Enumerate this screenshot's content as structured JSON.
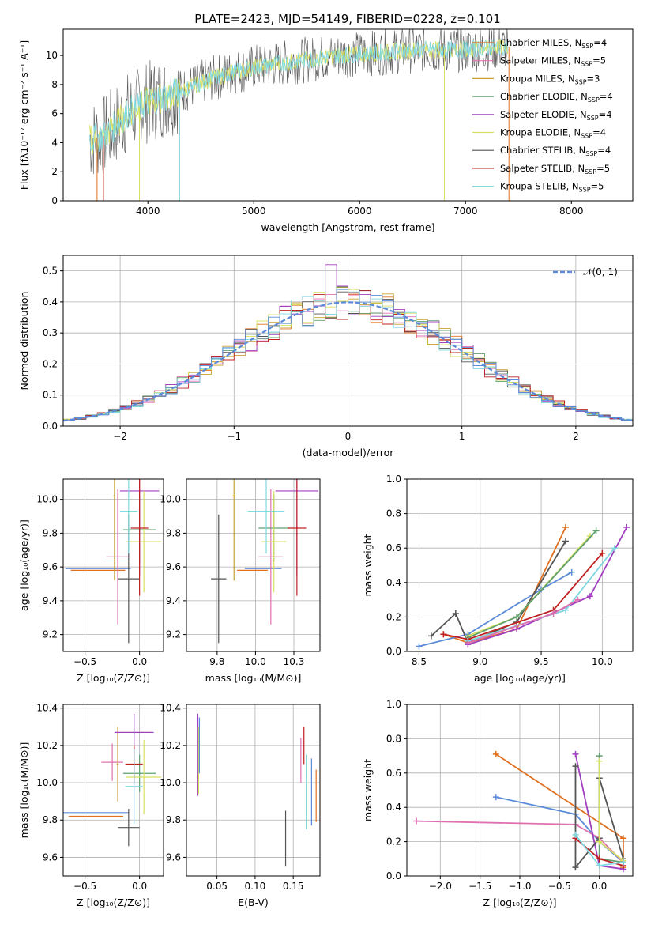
{
  "figure": {
    "title": "PLATE=2423, MJD=54149, FIBERID=0228, z=0.101"
  },
  "colors": {
    "cm": "#e07020",
    "sm": "#e070b0",
    "km": "#c8a030",
    "ce": "#60a070",
    "se": "#a040c0",
    "ke": "#d8e060",
    "cs": "#555555",
    "ss": "#c02020",
    "ks": "#80d8e0",
    "norm": "#5b8bd8",
    "grid": "#b0b0b0"
  },
  "chart_data": [
    {
      "id": "spectrum",
      "type": "line",
      "xlabel": "wavelength [Angstrom, rest frame]",
      "ylabel": "Flux [fλ10⁻¹⁷ erg cm⁻² s⁻¹ A⁻¹]",
      "xlim": [
        3200,
        8580
      ],
      "ylim": [
        0,
        11.8
      ],
      "xticks": [
        4000,
        5000,
        6000,
        7000,
        8000
      ],
      "yticks": [
        0,
        2,
        4,
        6,
        8,
        10
      ],
      "grid": false,
      "legend_position": "top-right",
      "legend": [
        {
          "label": "Chabrier MILES, N",
          "sub": "SSP",
          "val": "=4",
          "color": "cm"
        },
        {
          "label": "Salpeter MILES, N",
          "sub": "SSP",
          "val": "=5",
          "color": "sm"
        },
        {
          "label": "Kroupa MILES, N",
          "sub": "SSP",
          "val": "=3",
          "color": "km"
        },
        {
          "label": "Chabrier ELODIE, N",
          "sub": "SSP",
          "val": "=4",
          "color": "ce"
        },
        {
          "label": "Salpeter ELODIE, N",
          "sub": "SSP",
          "val": "=4",
          "color": "se"
        },
        {
          "label": "Kroupa ELODIE, N",
          "sub": "SSP",
          "val": "=4",
          "color": "ke"
        },
        {
          "label": "Chabrier STELIB, N",
          "sub": "SSP",
          "val": "=4",
          "color": "cs"
        },
        {
          "label": "Salpeter STELIB, N",
          "sub": "SSP",
          "val": "=5",
          "color": "ss"
        },
        {
          "label": "Kroupa STELIB, N",
          "sub": "SSP",
          "val": "=5",
          "color": "ks"
        }
      ],
      "continuum": [
        [
          3450,
          4.2
        ],
        [
          3600,
          4.5
        ],
        [
          3800,
          6.0
        ],
        [
          4000,
          6.8
        ],
        [
          4300,
          7.5
        ],
        [
          4600,
          8.4
        ],
        [
          5000,
          9.2
        ],
        [
          5400,
          9.6
        ],
        [
          5800,
          10.0
        ],
        [
          6200,
          10.2
        ],
        [
          6600,
          10.4
        ],
        [
          7000,
          10.4
        ],
        [
          7400,
          10.6
        ]
      ]
    },
    {
      "id": "residuals",
      "type": "line",
      "xlabel": "(data-model)/error",
      "ylabel": "Normed distribution",
      "xlim": [
        -2.5,
        2.5
      ],
      "ylim": [
        0,
        0.55
      ],
      "xticks": [
        -2,
        -1,
        0,
        1,
        2
      ],
      "yticks": [
        0.0,
        0.1,
        0.2,
        0.3,
        0.4,
        0.5
      ],
      "grid": true,
      "legend_position": "top-right",
      "legend_label": "𝒩(0, 1)",
      "bins": [
        -2.5,
        -2.4,
        -2.3,
        -2.2,
        -2.1,
        -2.0,
        -1.9,
        -1.8,
        -1.7,
        -1.6,
        -1.5,
        -1.4,
        -1.3,
        -1.2,
        -1.1,
        -1.0,
        -0.9,
        -0.8,
        -0.7,
        -0.6,
        -0.5,
        -0.4,
        -0.3,
        -0.2,
        -0.1,
        0.0,
        0.1,
        0.2,
        0.3,
        0.4,
        0.5,
        0.6,
        0.7,
        0.8,
        0.9,
        1.0,
        1.1,
        1.2,
        1.3,
        1.4,
        1.5,
        1.6,
        1.7,
        1.8,
        1.9,
        2.0,
        2.1,
        2.2,
        2.3,
        2.4,
        2.5
      ],
      "peak_bin": -0.2,
      "peak_value": 0.52
    },
    {
      "id": "age-vs-Z",
      "type": "scatter",
      "xlabel": "Z [log₁₀(Z/Z⊙)]",
      "ylabel": "age  [log₁₀(age/yr)]",
      "xlim": [
        -0.7,
        0.22
      ],
      "ylim": [
        9.1,
        10.12
      ],
      "xticks": [
        -0.5,
        0.0
      ],
      "yticks": [
        9.2,
        9.4,
        9.6,
        9.8,
        10.0
      ],
      "grid": true,
      "points": [
        {
          "c": "norm",
          "x": -0.38,
          "y": 9.59,
          "xe": 0.3,
          "ye": 0.0
        },
        {
          "c": "cm",
          "x": -0.38,
          "y": 9.58,
          "xe": 0.25,
          "ye": 0.0
        },
        {
          "c": "sm",
          "x": -0.2,
          "y": 9.66,
          "xe": 0.1,
          "ye": 0.4
        },
        {
          "c": "km",
          "x": -0.23,
          "y": 10.02,
          "xe": 0.01,
          "ye": 0.5
        },
        {
          "c": "ce",
          "x": 0.0,
          "y": 9.82,
          "xe": 0.15,
          "ye": 0.2
        },
        {
          "c": "se",
          "x": 0.0,
          "y": 10.05,
          "xe": 0.18,
          "ye": 0.5
        },
        {
          "c": "ke",
          "x": 0.04,
          "y": 9.75,
          "xe": 0.16,
          "ye": 0.3
        },
        {
          "c": "cs",
          "x": -0.1,
          "y": 9.53,
          "xe": 0.1,
          "ye": 0.38
        },
        {
          "c": "ss",
          "x": 0.0,
          "y": 9.83,
          "xe": 0.08,
          "ye": 0.4
        },
        {
          "c": "ks",
          "x": -0.1,
          "y": 9.93,
          "xe": 0.08,
          "ye": 0.25
        }
      ]
    },
    {
      "id": "age-vs-mass",
      "type": "scatter",
      "xlabel": "mass [log₁₀(M/M⊙)]",
      "ylabel": "",
      "xlim": [
        9.55,
        10.42
      ],
      "ylim": [
        9.1,
        10.12
      ],
      "xticks": [
        9.75,
        10.0,
        10.25
      ],
      "yticks": [
        9.2,
        9.4,
        9.6,
        9.8,
        10.0
      ],
      "grid": true,
      "points": [
        {
          "c": "norm",
          "x": 10.05,
          "y": 9.59,
          "xe": 0.12,
          "ye": 0.0
        },
        {
          "c": "cm",
          "x": 9.98,
          "y": 9.58,
          "xe": 0.1,
          "ye": 0.0
        },
        {
          "c": "sm",
          "x": 10.1,
          "y": 9.66,
          "xe": 0.08,
          "ye": 0.4
        },
        {
          "c": "km",
          "x": 9.86,
          "y": 10.02,
          "xe": 0.01,
          "ye": 0.5
        },
        {
          "c": "ce",
          "x": 10.12,
          "y": 9.83,
          "xe": 0.1,
          "ye": 0.2
        },
        {
          "c": "se",
          "x": 10.27,
          "y": 10.05,
          "xe": 0.14,
          "ye": 0.5
        },
        {
          "c": "ke",
          "x": 10.12,
          "y": 9.75,
          "xe": 0.08,
          "ye": 0.3
        },
        {
          "c": "cs",
          "x": 9.76,
          "y": 9.53,
          "xe": 0.05,
          "ye": 0.38
        },
        {
          "c": "ss",
          "x": 10.27,
          "y": 9.83,
          "xe": 0.06,
          "ye": 0.4
        },
        {
          "c": "ks",
          "x": 10.07,
          "y": 9.93,
          "xe": 0.12,
          "ye": 0.25
        }
      ]
    },
    {
      "id": "massweight-vs-age",
      "type": "line",
      "xlabel": "age  [log₁₀(age/yr)]",
      "ylabel": "mass weight",
      "xlim": [
        8.4,
        10.25
      ],
      "ylim": [
        0,
        1.0
      ],
      "xticks": [
        8.5,
        9.0,
        9.5,
        10.0
      ],
      "yticks": [
        0.0,
        0.2,
        0.4,
        0.6,
        0.8,
        1.0
      ],
      "grid": true,
      "series": [
        {
          "c": "cm",
          "x": [
            8.7,
            8.9,
            9.3,
            9.7
          ],
          "y": [
            0.1,
            0.05,
            0.13,
            0.72
          ]
        },
        {
          "c": "norm",
          "x": [
            8.5,
            8.9,
            9.5,
            9.75
          ],
          "y": [
            0.03,
            0.1,
            0.36,
            0.46
          ]
        },
        {
          "c": "cs",
          "x": [
            8.6,
            8.8,
            8.9,
            9.3,
            9.7
          ],
          "y": [
            0.09,
            0.22,
            0.05,
            0.17,
            0.64
          ]
        },
        {
          "c": "se",
          "x": [
            8.9,
            9.3,
            9.9,
            10.2
          ],
          "y": [
            0.04,
            0.13,
            0.32,
            0.72
          ]
        },
        {
          "c": "ke",
          "x": [
            8.9,
            9.3,
            9.9
          ],
          "y": [
            0.09,
            0.2,
            0.67
          ]
        },
        {
          "c": "ce",
          "x": [
            8.9,
            9.3,
            9.95
          ],
          "y": [
            0.08,
            0.2,
            0.7
          ]
        },
        {
          "c": "ss",
          "x": [
            8.7,
            8.9,
            9.6,
            10.0
          ],
          "y": [
            0.1,
            0.07,
            0.24,
            0.57
          ]
        },
        {
          "c": "ks",
          "x": [
            8.9,
            9.7,
            10.1
          ],
          "y": [
            0.06,
            0.24,
            0.6
          ]
        },
        {
          "c": "sm",
          "x": [
            8.9,
            9.6,
            9.8
          ],
          "y": [
            0.05,
            0.22,
            0.3
          ]
        }
      ]
    },
    {
      "id": "mass-vs-Z",
      "type": "scatter",
      "xlabel": "Z [log₁₀(Z/Z⊙)]",
      "ylabel": "mass [log₁₀(M/M⊙)]",
      "xlim": [
        -0.7,
        0.22
      ],
      "ylim": [
        9.5,
        10.42
      ],
      "xticks": [
        -0.5,
        0.0
      ],
      "yticks": [
        9.6,
        9.8,
        10.0,
        10.2,
        10.4
      ],
      "grid": true,
      "points": [
        {
          "c": "norm",
          "x": -0.4,
          "y": 9.84,
          "xe": 0.3,
          "ye": 0.0
        },
        {
          "c": "cm",
          "x": -0.4,
          "y": 9.82,
          "xe": 0.25,
          "ye": 0.0
        },
        {
          "c": "sm",
          "x": -0.25,
          "y": 10.11,
          "xe": 0.1,
          "ye": 0.1
        },
        {
          "c": "km",
          "x": -0.2,
          "y": 10.1,
          "xe": 0.01,
          "ye": 0.2
        },
        {
          "c": "ce",
          "x": 0.0,
          "y": 10.05,
          "xe": 0.15,
          "ye": 0.1
        },
        {
          "c": "se",
          "x": -0.05,
          "y": 10.27,
          "xe": 0.18,
          "ye": 0.1
        },
        {
          "c": "ke",
          "x": 0.04,
          "y": 10.03,
          "xe": 0.16,
          "ye": 0.2
        },
        {
          "c": "cs",
          "x": -0.1,
          "y": 9.76,
          "xe": 0.1,
          "ye": 0.1
        },
        {
          "c": "ss",
          "x": -0.05,
          "y": 10.1,
          "xe": 0.08,
          "ye": 0.1
        },
        {
          "c": "ks",
          "x": -0.05,
          "y": 9.98,
          "xe": 0.08,
          "ye": 0.2
        }
      ]
    },
    {
      "id": "mass-vs-ebv",
      "type": "scatter",
      "xlabel": "E(B-V)",
      "ylabel": "",
      "xlim": [
        0.01,
        0.185
      ],
      "ylim": [
        9.5,
        10.42
      ],
      "xticks": [
        0.05,
        0.1,
        0.15
      ],
      "yticks": [
        9.6,
        9.8,
        10.0,
        10.2,
        10.4
      ],
      "grid": true,
      "points": [
        {
          "c": "se",
          "x": 0.025,
          "y": 10.15,
          "xe": 0.0,
          "ye": 0.22
        },
        {
          "c": "ke",
          "x": 0.026,
          "y": 10.12,
          "xe": 0.0,
          "ye": 0.18
        },
        {
          "c": "norm",
          "x": 0.027,
          "y": 10.2,
          "xe": 0.0,
          "ye": 0.15
        },
        {
          "c": "cs",
          "x": 0.14,
          "y": 9.7,
          "xe": 0.0,
          "ye": 0.15
        },
        {
          "c": "sm",
          "x": 0.16,
          "y": 10.12,
          "xe": 0.0,
          "ye": 0.12
        },
        {
          "c": "ss",
          "x": 0.164,
          "y": 10.2,
          "xe": 0.0,
          "ye": 0.1
        },
        {
          "c": "ks",
          "x": 0.167,
          "y": 9.95,
          "xe": 0.0,
          "ye": 0.2
        },
        {
          "c": "norm",
          "x": 0.174,
          "y": 9.95,
          "xe": 0.0,
          "ye": 0.18
        },
        {
          "c": "cm",
          "x": 0.18,
          "y": 9.93,
          "xe": 0.0,
          "ye": 0.14
        }
      ]
    },
    {
      "id": "massweight-vs-Z",
      "type": "line",
      "xlabel": "Z [log₁₀(Z/Z⊙)]",
      "ylabel": "mass weight",
      "xlim": [
        -2.42,
        0.42
      ],
      "ylim": [
        0,
        1.0
      ],
      "xticks": [
        -2.0,
        -1.5,
        -1.0,
        -0.5,
        0.0
      ],
      "yticks": [
        0.0,
        0.2,
        0.4,
        0.6,
        0.8,
        1.0
      ],
      "grid": true,
      "series": [
        {
          "c": "cm",
          "x": [
            -1.3,
            0.3,
            0.3
          ],
          "y": [
            0.71,
            0.22,
            0.05
          ]
        },
        {
          "c": "norm",
          "x": [
            -1.3,
            -0.3,
            0.0,
            0.3
          ],
          "y": [
            0.46,
            0.36,
            0.2,
            0.08
          ]
        },
        {
          "c": "sm",
          "x": [
            -2.3,
            -0.3,
            0.0,
            0.3
          ],
          "y": [
            0.32,
            0.3,
            0.22,
            0.08
          ]
        },
        {
          "c": "se",
          "x": [
            -0.3,
            0.0,
            0.3
          ],
          "y": [
            0.71,
            0.06,
            0.04
          ]
        },
        {
          "c": "cs",
          "x": [
            -0.3,
            -0.3,
            0.0,
            0.0,
            0.3
          ],
          "y": [
            0.64,
            0.05,
            0.22,
            0.57,
            0.1
          ]
        },
        {
          "c": "ce",
          "x": [
            0.0,
            0.0,
            0.3
          ],
          "y": [
            0.7,
            0.1,
            0.08
          ]
        },
        {
          "c": "ke",
          "x": [
            0.0,
            0.0,
            0.3
          ],
          "y": [
            0.67,
            0.2,
            0.09
          ]
        },
        {
          "c": "ss",
          "x": [
            -0.3,
            0.0,
            0.3
          ],
          "y": [
            0.22,
            0.1,
            0.06
          ]
        },
        {
          "c": "ks",
          "x": [
            -0.3,
            0.0,
            0.3
          ],
          "y": [
            0.24,
            0.06,
            0.08
          ]
        }
      ]
    }
  ]
}
